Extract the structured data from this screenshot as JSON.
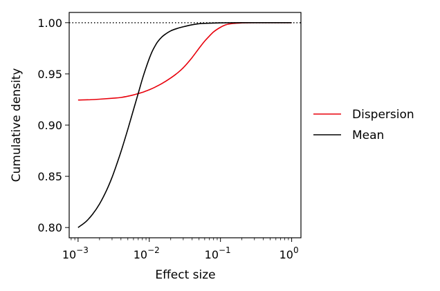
{
  "chart_data": {
    "type": "line",
    "xlabel": "Effect size",
    "ylabel": "Cumulative density",
    "xscale": "log",
    "xlim": [
      0.00075,
      1.35
    ],
    "ylim": [
      0.79,
      1.01
    ],
    "xticks": [
      {
        "value": 0.001,
        "mantissa": "10",
        "exponent": "−3"
      },
      {
        "value": 0.01,
        "mantissa": "10",
        "exponent": "−2"
      },
      {
        "value": 0.1,
        "mantissa": "10",
        "exponent": "−1"
      },
      {
        "value": 1,
        "mantissa": "10",
        "exponent": "0"
      }
    ],
    "yticks": [
      {
        "value": 0.8,
        "label": "0.80"
      },
      {
        "value": 0.85,
        "label": "0.85"
      },
      {
        "value": 0.9,
        "label": "0.90"
      },
      {
        "value": 0.95,
        "label": "0.95"
      },
      {
        "value": 1.0,
        "label": "1.00"
      }
    ],
    "reference_line": {
      "y": 1.0,
      "style": "dotted",
      "color": "#000000"
    },
    "grid": false,
    "legend": "right",
    "series": [
      {
        "name": "Dispersion",
        "color": "#e8000b",
        "x": [
          0.001,
          0.0015,
          0.002,
          0.003,
          0.004,
          0.005,
          0.006,
          0.007,
          0.008,
          0.009,
          0.01,
          0.012,
          0.015,
          0.02,
          0.025,
          0.03,
          0.04,
          0.05,
          0.06,
          0.07,
          0.08,
          0.1,
          0.12,
          0.15,
          0.2,
          0.3,
          0.5,
          1.0
        ],
        "y": [
          0.9245,
          0.9248,
          0.9253,
          0.9262,
          0.927,
          0.9282,
          0.9295,
          0.9308,
          0.932,
          0.9333,
          0.9345,
          0.937,
          0.9405,
          0.946,
          0.951,
          0.956,
          0.966,
          0.975,
          0.982,
          0.987,
          0.991,
          0.9955,
          0.998,
          0.9992,
          0.9998,
          1.0,
          1.0,
          1.0
        ]
      },
      {
        "name": "Mean",
        "color": "#000000",
        "x": [
          0.001,
          0.0013,
          0.0016,
          0.002,
          0.0025,
          0.003,
          0.0035,
          0.004,
          0.005,
          0.006,
          0.007,
          0.008,
          0.009,
          0.01,
          0.011,
          0.012,
          0.013,
          0.015,
          0.017,
          0.02,
          0.025,
          0.03,
          0.04,
          0.05,
          0.07,
          0.1,
          0.2,
          0.5,
          1.0
        ],
        "y": [
          0.8,
          0.806,
          0.813,
          0.823,
          0.836,
          0.849,
          0.862,
          0.874,
          0.896,
          0.915,
          0.931,
          0.945,
          0.956,
          0.965,
          0.972,
          0.977,
          0.981,
          0.986,
          0.989,
          0.992,
          0.9945,
          0.996,
          0.998,
          0.999,
          0.9995,
          0.9998,
          1.0,
          1.0,
          1.0
        ]
      }
    ]
  }
}
